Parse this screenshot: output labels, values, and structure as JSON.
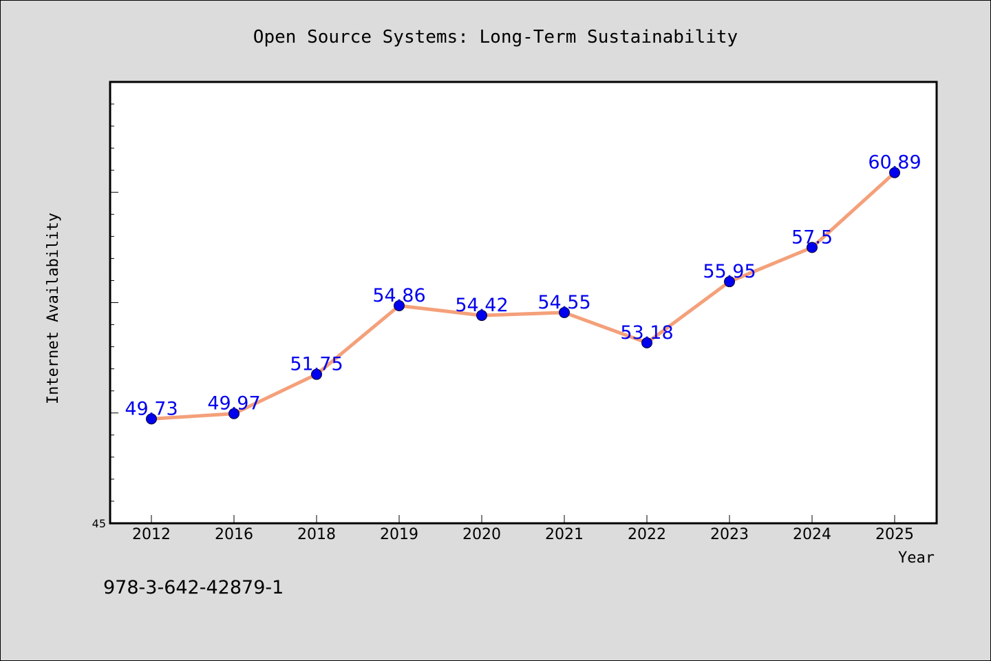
{
  "chart_data": {
    "type": "line",
    "title": "Open Source Systems: Long-Term Sustainability",
    "xlabel": "Year",
    "ylabel": "Internet Availability",
    "categories": [
      "2012",
      "2016",
      "2018",
      "2019",
      "2020",
      "2021",
      "2022",
      "2023",
      "2024",
      "2025"
    ],
    "series": [
      {
        "values": [
          49.73,
          49.97,
          51.75,
          54.86,
          54.42,
          54.55,
          53.18,
          55.95,
          57.5,
          60.89
        ],
        "data_labels": [
          "49.73",
          "49.97",
          "51.75",
          "54.86",
          "54.42",
          "54.55",
          "53.18",
          "55.95",
          "57.5",
          "60.89"
        ]
      }
    ],
    "ylim": [
      45,
      65
    ],
    "y_tick_labels": [
      "45"
    ],
    "grid": false,
    "line_color": "#f4a07a",
    "marker_color": "#0000ee",
    "label_color": "#0000ee",
    "plot_background": "#ffffff",
    "figure_background": "#dcdcdc"
  },
  "footer": {
    "isbn": "978-3-642-42879-1"
  }
}
